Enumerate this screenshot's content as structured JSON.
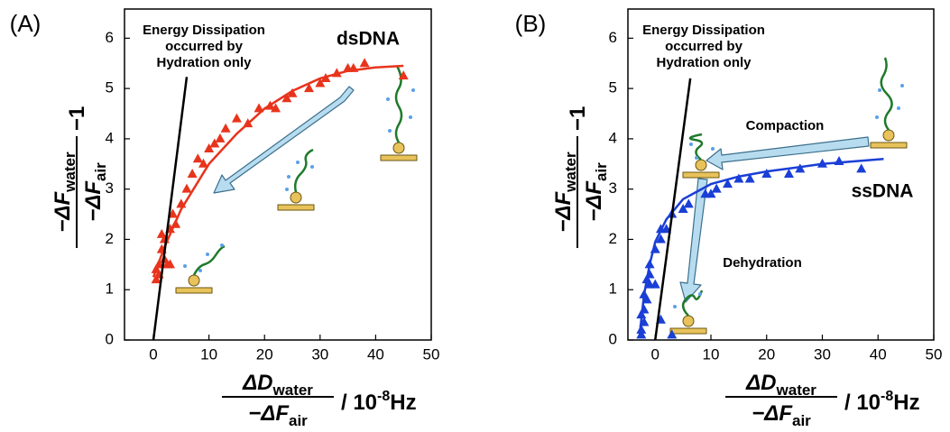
{
  "chart_data": [
    {
      "type": "scatter",
      "panel_label": "(A)",
      "annotation": [
        "Energy Dissipation",
        "occurred by",
        "Hydration only"
      ],
      "xlim": [
        -5.2,
        50
      ],
      "ylim": [
        0,
        6.58
      ],
      "xticks": [
        0,
        10,
        20,
        30,
        40,
        50
      ],
      "yticks": [
        0,
        1,
        2,
        3,
        4,
        5,
        6
      ],
      "xlabel": {
        "num": "ΔD",
        "num_sub": "water",
        "den": "−ΔF",
        "den_sub": "air",
        "unit_pre": "/ 10",
        "unit_sup": "-8",
        "unit_post": "Hz"
      },
      "ylabel": {
        "num": "−ΔF",
        "num_sub": "water",
        "den": "−ΔF",
        "den_sub": "air",
        "suffix": "−1"
      },
      "series": [
        {
          "name": "dsDNA",
          "color": "#e8341c",
          "marker": "triangle",
          "x": [
            0.5,
            0.5,
            1,
            1,
            1.5,
            2,
            2,
            2.5,
            3,
            3,
            3.5,
            4,
            1.5,
            5,
            6,
            7,
            8,
            9,
            10,
            11,
            12,
            13,
            15,
            17,
            19,
            21,
            22,
            24,
            25,
            28,
            30,
            31,
            33,
            35,
            36,
            38,
            45
          ],
          "values": [
            1.2,
            1.4,
            1.5,
            1.3,
            1.8,
            2.0,
            1.6,
            1.5,
            1.5,
            2.2,
            2.5,
            2.3,
            2.1,
            2.7,
            3.0,
            3.3,
            3.6,
            3.5,
            3.8,
            3.9,
            4.0,
            4.2,
            4.4,
            4.3,
            4.6,
            4.65,
            4.6,
            4.8,
            4.9,
            5.0,
            5.1,
            5.2,
            5.3,
            5.4,
            5.4,
            5.5,
            5.25
          ]
        },
        {
          "color": "#e8341c",
          "marker": "line",
          "x": [
            0,
            2,
            5,
            10,
            15,
            20,
            25,
            30,
            35,
            40,
            45
          ],
          "values": [
            1.25,
            1.85,
            2.6,
            3.5,
            4.1,
            4.6,
            4.95,
            5.2,
            5.35,
            5.42,
            5.45
          ]
        },
        {
          "color": "#000000",
          "marker": "line",
          "x": [
            0,
            6
          ],
          "values": [
            0,
            5.23
          ]
        }
      ]
    },
    {
      "type": "scatter",
      "panel_label": "(B)",
      "annotation": [
        "Energy Dissipation",
        "occurred by",
        "Hydration only"
      ],
      "notes": [
        "Compaction",
        "Dehydration"
      ],
      "xlim": [
        -4.9,
        50
      ],
      "ylim": [
        0,
        6.58
      ],
      "xticks": [
        0,
        10,
        20,
        30,
        40,
        50
      ],
      "yticks": [
        0,
        1,
        2,
        3,
        4,
        5,
        6
      ],
      "xlabel": {
        "num": "ΔD",
        "num_sub": "water",
        "den": "−ΔF",
        "den_sub": "air",
        "unit_pre": "/ 10",
        "unit_sup": "-8",
        "unit_post": "Hz"
      },
      "ylabel": {
        "num": "−ΔF",
        "num_sub": "water",
        "den": "−ΔF",
        "den_sub": "air",
        "suffix": "−1"
      },
      "series": [
        {
          "name": "ssDNA",
          "color": "#1a3fd6",
          "marker": "triangle",
          "x": [
            -2.5,
            -2.5,
            -2,
            -2.5,
            -2,
            -1.5,
            -2,
            -1.5,
            -1,
            -1,
            0,
            -1,
            0,
            1,
            1,
            2,
            3,
            5,
            6,
            9,
            10,
            11,
            13,
            15,
            17,
            20,
            24,
            26,
            30,
            33,
            37,
            1,
            3
          ],
          "values": [
            0.1,
            0.2,
            0.35,
            0.5,
            0.6,
            0.8,
            0.9,
            1.2,
            1.3,
            1.1,
            1.1,
            1.5,
            1.8,
            2.0,
            2.2,
            2.2,
            2.5,
            2.6,
            2.7,
            2.9,
            2.9,
            3.0,
            3.1,
            3.2,
            3.2,
            3.3,
            3.3,
            3.4,
            3.5,
            3.55,
            3.4,
            0.4,
            0.1
          ]
        },
        {
          "color": "#1a3fd6",
          "marker": "line",
          "x": [
            -2.8,
            -2,
            -1,
            0,
            2,
            5,
            10,
            15,
            20,
            30,
            41
          ],
          "values": [
            0.1,
            0.9,
            1.5,
            1.95,
            2.4,
            2.8,
            3.1,
            3.25,
            3.35,
            3.5,
            3.6
          ]
        },
        {
          "color": "#000000",
          "marker": "line",
          "x": [
            0,
            6.3
          ],
          "values": [
            0,
            5.2
          ]
        }
      ]
    }
  ]
}
